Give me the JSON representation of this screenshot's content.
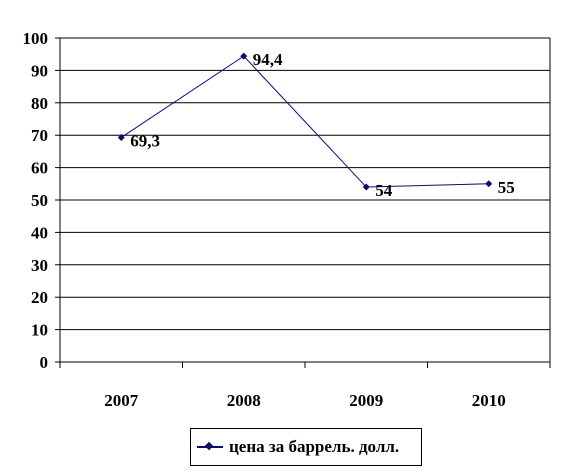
{
  "chart_data": {
    "type": "line",
    "categories": [
      "2007",
      "2008",
      "2009",
      "2010"
    ],
    "series": [
      {
        "name": "цена за баррель. долл.",
        "values": [
          69.3,
          94.4,
          54,
          55
        ],
        "labels": [
          "69,3",
          "94,4",
          "54",
          "55"
        ],
        "color": "#0b0b6e"
      }
    ],
    "ylim": [
      0,
      100
    ],
    "yticks": [
      "0",
      "10",
      "20",
      "30",
      "40",
      "50",
      "60",
      "70",
      "80",
      "90",
      "100"
    ],
    "grid": true,
    "legend_position": "bottom"
  }
}
